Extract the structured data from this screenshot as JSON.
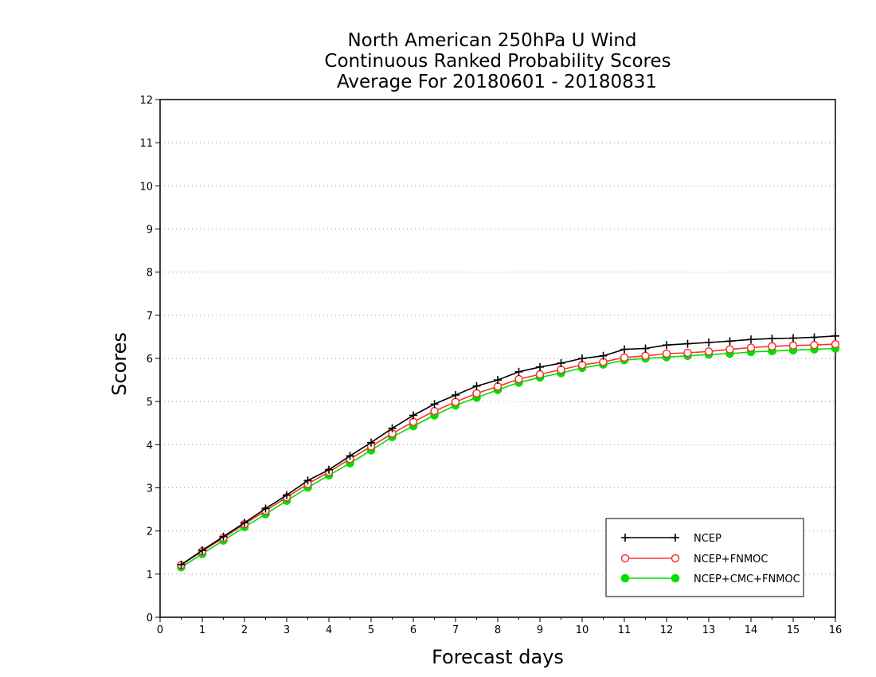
{
  "chart_data": {
    "type": "line",
    "title_lines": [
      "North American 250hPa U Wind",
      "Continuous Ranked Probability Scores",
      "Average For 20180601 - 20180831"
    ],
    "xlabel": "Forecast days",
    "ylabel": "Scores",
    "xlim": [
      0,
      16
    ],
    "ylim": [
      0,
      12
    ],
    "xticks": [
      "0",
      "1",
      "2",
      "3",
      "4",
      "5",
      "6",
      "7",
      "8",
      "9",
      "10",
      "11",
      "12",
      "13",
      "14",
      "15",
      "16"
    ],
    "yticks": [
      "0",
      "1",
      "2",
      "3",
      "4",
      "5",
      "6",
      "7",
      "8",
      "9",
      "10",
      "11",
      "12"
    ],
    "grid": "horizontal dotted",
    "legend_position": "bottom-right",
    "x": [
      0.5,
      1,
      1.5,
      2,
      2.5,
      3,
      3.5,
      4,
      4.5,
      5,
      5.5,
      6,
      6.5,
      7,
      7.5,
      8,
      8.5,
      9,
      9.5,
      10,
      10.5,
      11,
      11.5,
      12,
      12.5,
      13,
      13.5,
      14,
      14.5,
      15,
      15.5,
      16
    ],
    "series": [
      {
        "name": "NCEP",
        "color": "#000000",
        "marker": "plus",
        "values": [
          1.22,
          1.55,
          1.87,
          2.19,
          2.52,
          2.83,
          3.17,
          3.42,
          3.74,
          4.05,
          4.38,
          4.68,
          4.94,
          5.15,
          5.36,
          5.5,
          5.69,
          5.8,
          5.89,
          6.0,
          6.06,
          6.21,
          6.23,
          6.31,
          6.34,
          6.37,
          6.4,
          6.44,
          6.46,
          6.47,
          6.49,
          6.52
        ]
      },
      {
        "name": "NCEP+FNMOC",
        "color": "#ff3030",
        "marker": "open-circle",
        "values": [
          1.21,
          1.53,
          1.84,
          2.16,
          2.47,
          2.78,
          3.09,
          3.37,
          3.67,
          3.96,
          4.26,
          4.53,
          4.78,
          4.99,
          5.19,
          5.35,
          5.52,
          5.63,
          5.74,
          5.85,
          5.92,
          6.02,
          6.06,
          6.11,
          6.13,
          6.16,
          6.21,
          6.25,
          6.28,
          6.3,
          6.31,
          6.33
        ]
      },
      {
        "name": "NCEP+CMC+FNMOC",
        "color": "#00e000",
        "marker": "filled-circle",
        "values": [
          1.16,
          1.47,
          1.78,
          2.09,
          2.39,
          2.7,
          3.01,
          3.29,
          3.57,
          3.87,
          4.18,
          4.43,
          4.68,
          4.91,
          5.09,
          5.27,
          5.44,
          5.56,
          5.66,
          5.78,
          5.86,
          5.96,
          6.0,
          6.03,
          6.06,
          6.09,
          6.11,
          6.15,
          6.17,
          6.19,
          6.21,
          6.23
        ]
      }
    ]
  }
}
